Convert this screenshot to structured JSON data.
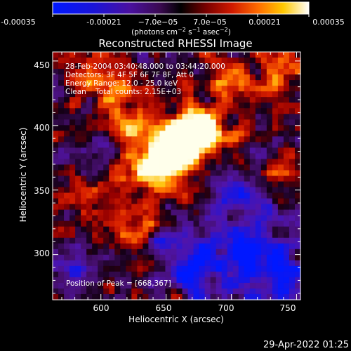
{
  "colorbar": {
    "ticks": [
      "-0.00035",
      "-0.00021",
      "−7.0e−05",
      "7.0e−05",
      "0.00021",
      "0.00035"
    ],
    "units_prefix": "(photons cm",
    "units_exp1": "−2",
    "units_mid1": " s",
    "units_exp2": "−1",
    "units_mid2": " asec",
    "units_exp3": "−2",
    "units_suffix": ")"
  },
  "title": "Reconstructed RHESSI Image",
  "info": {
    "line1": "28-Feb-2004 03:40:48.000 to 03:44:20.000",
    "line2": "Detectors: 3F 4F 5F 6F 7F 8F, Att 0",
    "line3": "Energy Range: 12.0 - 25.0 keV",
    "line4": "Clean    Total counts: 2.15E+03"
  },
  "peak": "Position of Peak = [668,367]",
  "axes": {
    "xlabel": "Heliocentric X (arcsec)",
    "ylabel": "Heliocentric Y (arcsec)",
    "xticks": [
      "600",
      "650",
      "700",
      "750"
    ],
    "yticks": [
      "300",
      "350",
      "400",
      "450"
    ],
    "xlim": [
      563,
      753
    ],
    "ylim": [
      265,
      457
    ]
  },
  "timestamp": "29-Apr-2022 01:25",
  "colors": {
    "low": "#0000ff",
    "mid": "#000000",
    "high": "#ffffff"
  }
}
